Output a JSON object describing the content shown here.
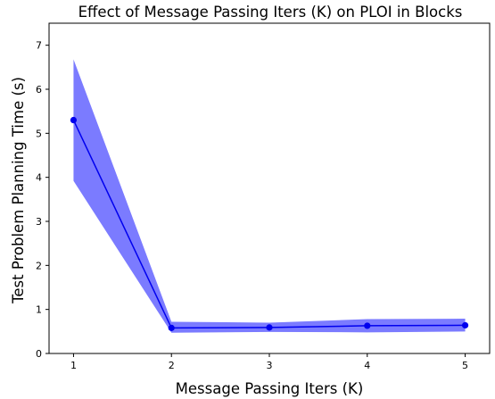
{
  "chart_data": {
    "type": "line",
    "title": "Effect of Message Passing Iters (K) on PLOI in Blocks",
    "xlabel": "Message Passing Iters (K)",
    "ylabel": "Test Problem Planning Time (s)",
    "x": [
      1,
      2,
      3,
      4,
      5
    ],
    "series": [
      {
        "values": [
          5.3,
          0.58,
          0.59,
          0.63,
          0.64
        ],
        "band_lower": [
          3.92,
          0.47,
          0.49,
          0.48,
          0.5
        ],
        "band_upper": [
          6.68,
          0.72,
          0.7,
          0.78,
          0.79
        ],
        "color": "#0000ee",
        "band_color": "#7b7bff"
      }
    ],
    "xticks": [
      "1",
      "2",
      "3",
      "4",
      "5"
    ],
    "yticks": [
      "0",
      "1",
      "2",
      "3",
      "4",
      "5",
      "6",
      "7"
    ],
    "xlim": [
      0.75,
      5.25
    ],
    "ylim": [
      0,
      7.5
    ],
    "grid": false,
    "legend": "none"
  }
}
